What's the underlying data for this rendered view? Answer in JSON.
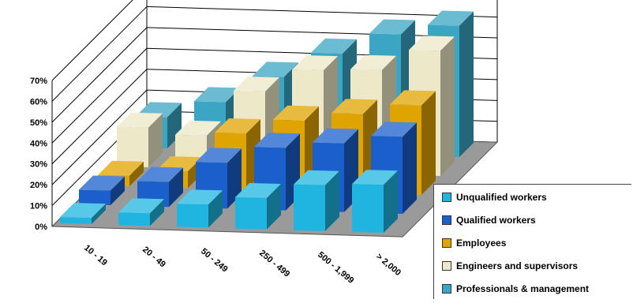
{
  "chart_data": {
    "type": "bar",
    "subtype": "3d-grouped-depth",
    "title": "",
    "xlabel": "",
    "ylabel": "",
    "ylim": [
      0,
      70
    ],
    "y_ticks": [
      "0%",
      "10%",
      "20%",
      "30%",
      "40%",
      "50%",
      "60%",
      "70%"
    ],
    "categories": [
      "10 - 19",
      "20 - 49",
      "50 - 249",
      "250 - 499",
      "500 - 1,999",
      "> 2,000"
    ],
    "series": [
      {
        "name": "Unqualified workers",
        "color": "#1fb5e0",
        "values": [
          3,
          6,
          11,
          15,
          22,
          23
        ]
      },
      {
        "name": "Qualified workers",
        "color": "#1a5fcc",
        "values": [
          7,
          12,
          22,
          30,
          33,
          37
        ]
      },
      {
        "name": "Employees",
        "color": "#e0a400",
        "values": [
          5,
          8,
          27,
          34,
          38,
          43
        ]
      },
      {
        "name": "Engineers and supervisors",
        "color": "#ede8c8",
        "values": [
          19,
          16,
          38,
          49,
          50,
          60
        ]
      },
      {
        "name": "Professionals & management",
        "color": "#3aa6c4",
        "values": [
          15,
          23,
          36,
          48,
          58,
          63
        ]
      }
    ],
    "grid": true,
    "legend_position": "bottom-right"
  }
}
